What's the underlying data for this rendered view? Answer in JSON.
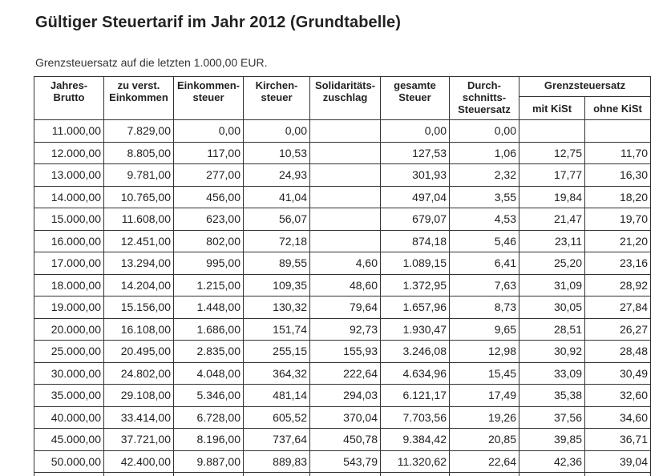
{
  "title": "Gültiger Steuertarif im Jahr 2012 (Grundtabelle)",
  "subtitle": "Grenzsteuersatz auf die letzten 1.000,00 EUR.",
  "table": {
    "headers": {
      "jahres_brutto": [
        "Jahres-",
        "Brutto"
      ],
      "zu_verst": [
        "zu verst.",
        "Einkommen"
      ],
      "einkommensteuer": [
        "Einkommen-",
        "steuer"
      ],
      "kirchensteuer": [
        "Kirchen-",
        "steuer"
      ],
      "soli": [
        "Solidaritäts-",
        "zuschlag"
      ],
      "gesamte": [
        "gesamte",
        "Steuer"
      ],
      "durchschnitt": [
        "Durch-",
        "schnitts-",
        "Steuersatz"
      ],
      "grenz": "Grenzsteuersatz",
      "mit_kist": "mit KiSt",
      "ohne_kist": "ohne KiSt"
    },
    "rows": [
      [
        "11.000,00",
        "7.829,00",
        "0,00",
        "0,00",
        "",
        "0,00",
        "0,00",
        "",
        ""
      ],
      [
        "12.000,00",
        "8.805,00",
        "117,00",
        "10,53",
        "",
        "127,53",
        "1,06",
        "12,75",
        "11,70"
      ],
      [
        "13.000,00",
        "9.781,00",
        "277,00",
        "24,93",
        "",
        "301,93",
        "2,32",
        "17,77",
        "16,30"
      ],
      [
        "14.000,00",
        "10.765,00",
        "456,00",
        "41,04",
        "",
        "497,04",
        "3,55",
        "19,84",
        "18,20"
      ],
      [
        "15.000,00",
        "11.608,00",
        "623,00",
        "56,07",
        "",
        "679,07",
        "4,53",
        "21,47",
        "19,70"
      ],
      [
        "16.000,00",
        "12.451,00",
        "802,00",
        "72,18",
        "",
        "874,18",
        "5,46",
        "23,11",
        "21,20"
      ],
      [
        "17.000,00",
        "13.294,00",
        "995,00",
        "89,55",
        "4,60",
        "1.089,15",
        "6,41",
        "25,20",
        "23,16"
      ],
      [
        "18.000,00",
        "14.204,00",
        "1.215,00",
        "109,35",
        "48,60",
        "1.372,95",
        "7,63",
        "31,09",
        "28,92"
      ],
      [
        "19.000,00",
        "15.156,00",
        "1.448,00",
        "130,32",
        "79,64",
        "1.657,96",
        "8,73",
        "30,05",
        "27,84"
      ],
      [
        "20.000,00",
        "16.108,00",
        "1.686,00",
        "151,74",
        "92,73",
        "1.930,47",
        "9,65",
        "28,51",
        "26,27"
      ],
      [
        "25.000,00",
        "20.495,00",
        "2.835,00",
        "255,15",
        "155,93",
        "3.246,08",
        "12,98",
        "30,92",
        "28,48"
      ],
      [
        "30.000,00",
        "24.802,00",
        "4.048,00",
        "364,32",
        "222,64",
        "4.634,96",
        "15,45",
        "33,09",
        "30,49"
      ],
      [
        "35.000,00",
        "29.108,00",
        "5.346,00",
        "481,14",
        "294,03",
        "6.121,17",
        "17,49",
        "35,38",
        "32,60"
      ],
      [
        "40.000,00",
        "33.414,00",
        "6.728,00",
        "605,52",
        "370,04",
        "7.703,56",
        "19,26",
        "37,56",
        "34,60"
      ],
      [
        "45.000,00",
        "37.721,00",
        "8.196,00",
        "737,64",
        "450,78",
        "9.384,42",
        "20,85",
        "39,85",
        "36,71"
      ],
      [
        "50.000,00",
        "42.400,00",
        "9.887,00",
        "889,83",
        "543,79",
        "11.320,62",
        "22,64",
        "42,36",
        "39,04"
      ],
      [
        "",
        "",
        "",
        "",
        "",
        "",
        "",
        "",
        ""
      ]
    ]
  }
}
